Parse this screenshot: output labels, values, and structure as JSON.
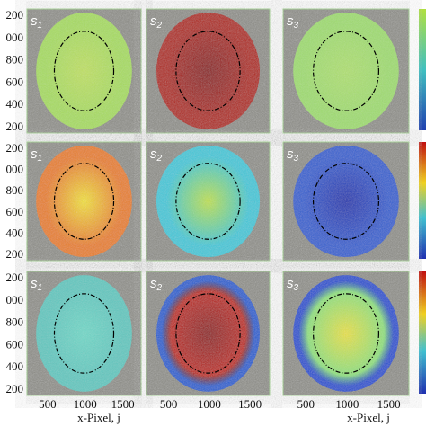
{
  "panel_labels": [
    [
      {
        "letter": "s",
        "sub": "1"
      },
      {
        "letter": "s",
        "sub": "2"
      },
      {
        "letter": "s",
        "sub": "3"
      }
    ],
    [
      {
        "letter": "s",
        "sub": "1"
      },
      {
        "letter": "s",
        "sub": "2"
      },
      {
        "letter": "s",
        "sub": "3"
      }
    ],
    [
      {
        "letter": "s",
        "sub": "1"
      },
      {
        "letter": "s",
        "sub": "2"
      },
      {
        "letter": "s",
        "sub": "3"
      }
    ]
  ],
  "y_tick_labels": [
    [
      "200",
      "000",
      "800",
      "600",
      "400",
      "200"
    ],
    [
      "200",
      "000",
      "800",
      "600",
      "400",
      "200"
    ],
    [
      "200",
      "000",
      "800",
      "600",
      "400",
      "200"
    ]
  ],
  "x_tick_labels": [
    [
      "500",
      "1000",
      "1500"
    ],
    [
      "500",
      "1000",
      "1500"
    ],
    [
      "500",
      "1000",
      "1500"
    ]
  ],
  "x_axis_labels": [
    "x-Pixel, j",
    "x-Pixel, j"
  ]
}
